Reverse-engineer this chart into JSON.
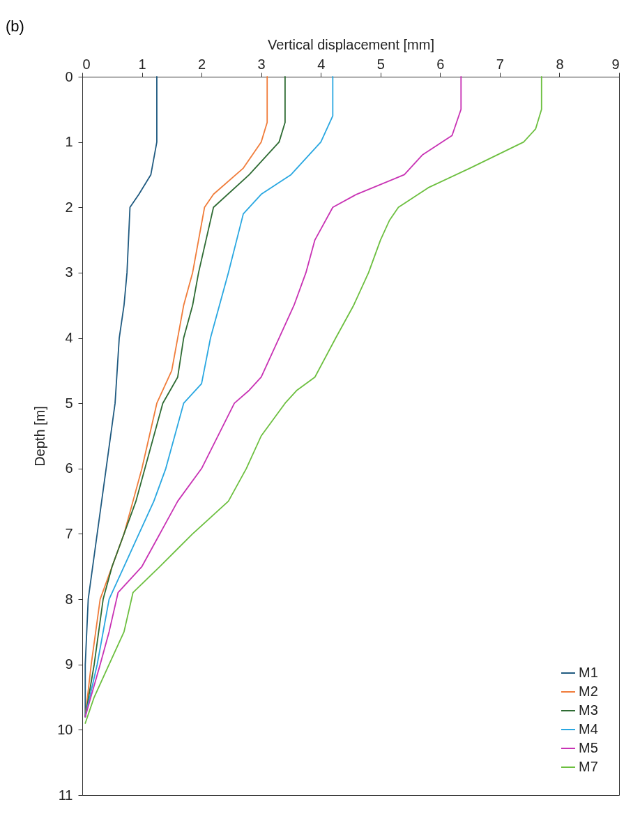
{
  "chart_data": {
    "type": "line",
    "title": "(b)",
    "xlabel": "Vertical displacement [mm]",
    "ylabel": "Depth [m]",
    "xlim": [
      0,
      9
    ],
    "xticks": [
      0,
      1,
      2,
      3,
      4,
      5,
      6,
      7,
      8,
      9
    ],
    "ylim": [
      11,
      0
    ],
    "yticks": [
      0,
      1,
      2,
      3,
      4,
      5,
      6,
      7,
      8,
      9,
      10,
      11
    ],
    "grid": false,
    "legend": "bottom right",
    "line_style": "solid",
    "series": [
      {
        "name": "M1",
        "color": "#1f5a80",
        "x": [
          1.25,
          1.25,
          1.15,
          0.95,
          0.8,
          0.75,
          0.7,
          0.62,
          0.55,
          0.4,
          0.25,
          0.1,
          0.05,
          0.05
        ],
        "values": [
          0,
          1,
          1.5,
          1.8,
          2,
          3,
          3.5,
          4,
          5,
          6,
          7,
          8,
          9,
          9.8
        ]
      },
      {
        "name": "M2",
        "color": "#f07c3a",
        "x": [
          3.1,
          3.1,
          3.0,
          2.7,
          2.2,
          2.05,
          1.85,
          1.7,
          1.6,
          1.5,
          1.25,
          1.0,
          0.85,
          0.7,
          0.5,
          0.3,
          0.15,
          0.05
        ],
        "values": [
          0,
          0.7,
          1,
          1.4,
          1.8,
          2,
          3,
          3.5,
          4,
          4.5,
          5,
          6,
          6.5,
          7,
          7.5,
          8,
          9,
          9.8
        ]
      },
      {
        "name": "M3",
        "color": "#2e6b33",
        "x": [
          3.4,
          3.4,
          3.3,
          2.8,
          2.2,
          1.95,
          1.85,
          1.7,
          1.6,
          1.35,
          1.05,
          0.9,
          0.7,
          0.5,
          0.35,
          0.2,
          0.05
        ],
        "values": [
          0,
          0.7,
          1,
          1.5,
          2,
          3,
          3.5,
          4,
          4.6,
          5,
          6,
          6.5,
          7,
          7.5,
          8,
          9,
          9.8
        ]
      },
      {
        "name": "M4",
        "color": "#29a7e1",
        "x": [
          4.2,
          4.2,
          4.0,
          3.5,
          3.0,
          2.7,
          2.45,
          2.3,
          2.15,
          2.0,
          1.7,
          1.4,
          1.2,
          0.95,
          0.7,
          0.45,
          0.25,
          0.05
        ],
        "values": [
          0,
          0.6,
          1,
          1.5,
          1.8,
          2.1,
          3,
          3.5,
          4,
          4.7,
          5,
          6,
          6.5,
          7,
          7.5,
          8,
          9,
          9.8
        ]
      },
      {
        "name": "M5",
        "color": "#c832b4",
        "x": [
          6.35,
          6.35,
          6.2,
          5.7,
          5.4,
          4.6,
          4.2,
          3.9,
          3.75,
          3.55,
          3.3,
          3.0,
          2.8,
          2.55,
          2.0,
          1.6,
          1.3,
          1.0,
          0.6,
          0.45,
          0.3,
          0.05
        ],
        "values": [
          0,
          0.5,
          0.9,
          1.2,
          1.5,
          1.8,
          2,
          2.5,
          3,
          3.5,
          4,
          4.6,
          4.8,
          5,
          6,
          6.5,
          7,
          7.5,
          7.9,
          8.5,
          9,
          9.8
        ]
      },
      {
        "name": "M7",
        "color": "#6cbf3f",
        "x": [
          7.7,
          7.7,
          7.6,
          7.4,
          6.5,
          5.8,
          5.3,
          5.15,
          5.0,
          4.8,
          4.55,
          4.25,
          3.9,
          3.6,
          3.4,
          3.0,
          2.75,
          2.45,
          1.85,
          1.3,
          0.85,
          0.7,
          0.45,
          0.2,
          0.05
        ],
        "values": [
          0,
          0.5,
          0.8,
          1,
          1.4,
          1.7,
          2,
          2.2,
          2.5,
          3,
          3.5,
          4,
          4.6,
          4.8,
          5,
          5.5,
          6,
          6.5,
          7,
          7.5,
          7.9,
          8.5,
          9,
          9.5,
          9.9
        ]
      }
    ]
  }
}
